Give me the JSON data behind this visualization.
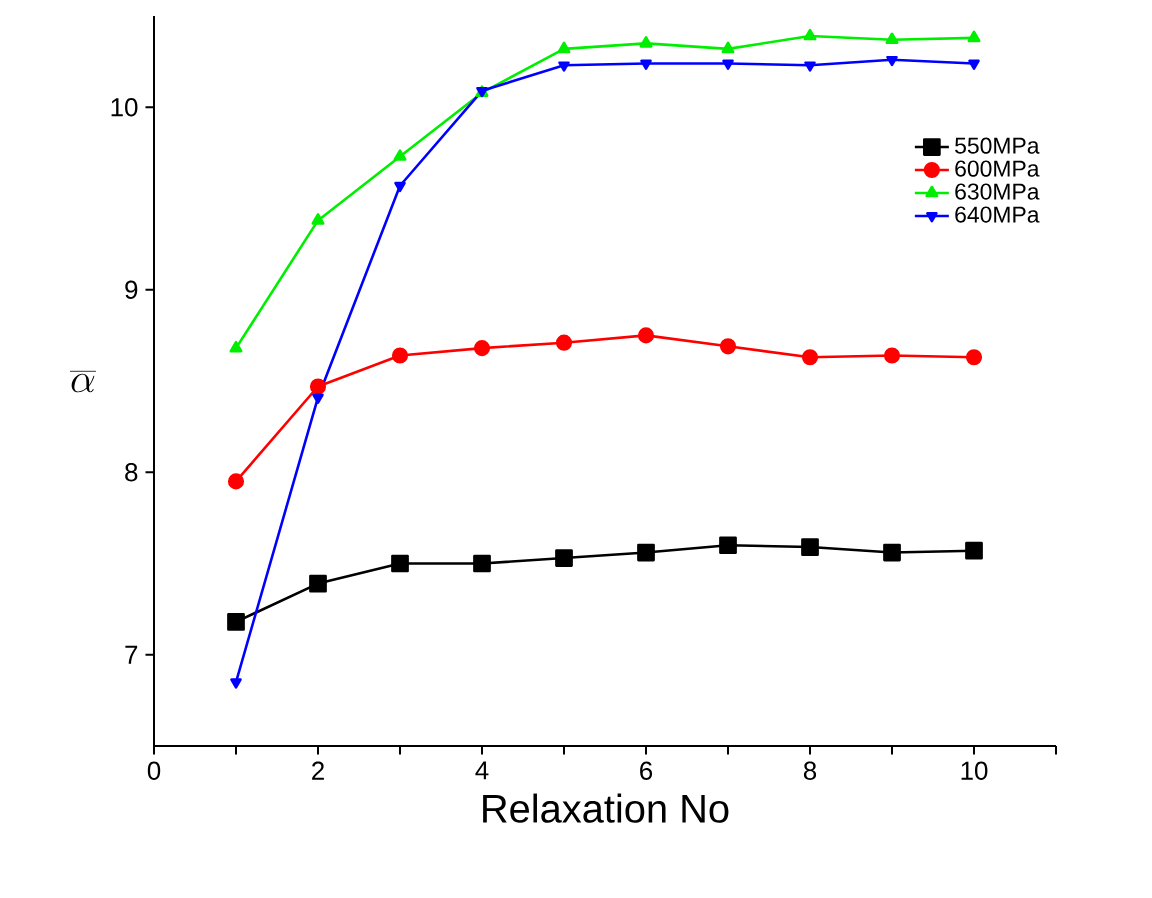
{
  "chart_data": {
    "type": "line",
    "xlabel": "Relaxation No",
    "ylabel": "\\overline{\\alpha}",
    "x": [
      1,
      2,
      3,
      4,
      5,
      6,
      7,
      8,
      9,
      10
    ],
    "series": [
      {
        "name": "550MPa",
        "color": "#000000",
        "marker": "square",
        "values": [
          7.18,
          7.39,
          7.5,
          7.5,
          7.53,
          7.56,
          7.6,
          7.59,
          7.56,
          7.57
        ]
      },
      {
        "name": "600MPa",
        "color": "#ff0000",
        "marker": "circle",
        "values": [
          7.95,
          8.47,
          8.64,
          8.68,
          8.71,
          8.75,
          8.69,
          8.63,
          8.64,
          8.63
        ]
      },
      {
        "name": "630MPa",
        "color": "#00ee00",
        "marker": "triangle",
        "values": [
          8.68,
          9.38,
          9.73,
          10.08,
          10.32,
          10.35,
          10.32,
          10.39,
          10.37,
          10.38
        ]
      },
      {
        "name": "640MPa",
        "color": "#0000ff",
        "marker": "triangle down",
        "values": [
          6.85,
          8.41,
          9.57,
          10.09,
          10.23,
          10.24,
          10.24,
          10.23,
          10.26,
          10.24
        ]
      }
    ],
    "xlim": [
      0,
      11
    ],
    "ylim": [
      6.5,
      10.5
    ],
    "xticks": [
      0,
      {
        "value": 1,
        "label": null
      },
      2,
      {
        "value": 3,
        "label": null
      },
      4,
      {
        "value": 5,
        "label": null
      },
      6,
      {
        "value": 7,
        "label": null
      },
      8,
      {
        "value": 9,
        "label": null
      },
      10,
      {
        "value": 11,
        "label": null
      }
    ],
    "yticks": [
      7,
      8,
      9,
      10
    ],
    "grid": false,
    "legend": "right",
    "line_style": "solid"
  }
}
